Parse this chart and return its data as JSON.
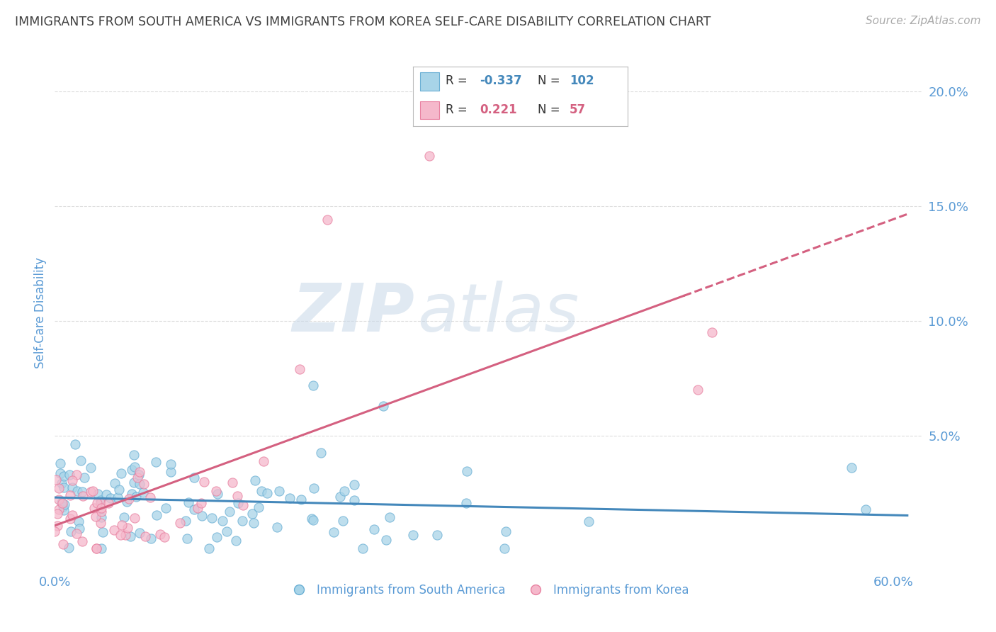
{
  "title": "IMMIGRANTS FROM SOUTH AMERICA VS IMMIGRANTS FROM KOREA SELF-CARE DISABILITY CORRELATION CHART",
  "source": "Source: ZipAtlas.com",
  "ylabel": "Self-Care Disability",
  "right_yticks": [
    "20.0%",
    "15.0%",
    "10.0%",
    "5.0%"
  ],
  "right_ytick_vals": [
    0.2,
    0.15,
    0.1,
    0.05
  ],
  "series1_name": "Immigrants from South America",
  "series2_name": "Immigrants from Korea",
  "series1_color": "#a8d4e8",
  "series2_color": "#f5b8cb",
  "series1_edge": "#6aafd4",
  "series2_edge": "#e880a0",
  "series1_line_color": "#4488bb",
  "series2_line_color": "#d46080",
  "series1_R": -0.337,
  "series2_R": 0.221,
  "series1_N": 102,
  "series2_N": 57,
  "xlim": [
    0.0,
    0.62
  ],
  "ylim": [
    -0.008,
    0.215
  ],
  "legend_R1": "-0.337",
  "legend_N1": "102",
  "legend_R2": "0.221",
  "legend_N2": "57",
  "background_color": "#ffffff",
  "grid_color": "#dddddd",
  "title_color": "#404040",
  "axis_color": "#5b9bd5",
  "source_color": "#aaaaaa",
  "watermark_zip": "ZIP",
  "watermark_atlas": "atlas"
}
